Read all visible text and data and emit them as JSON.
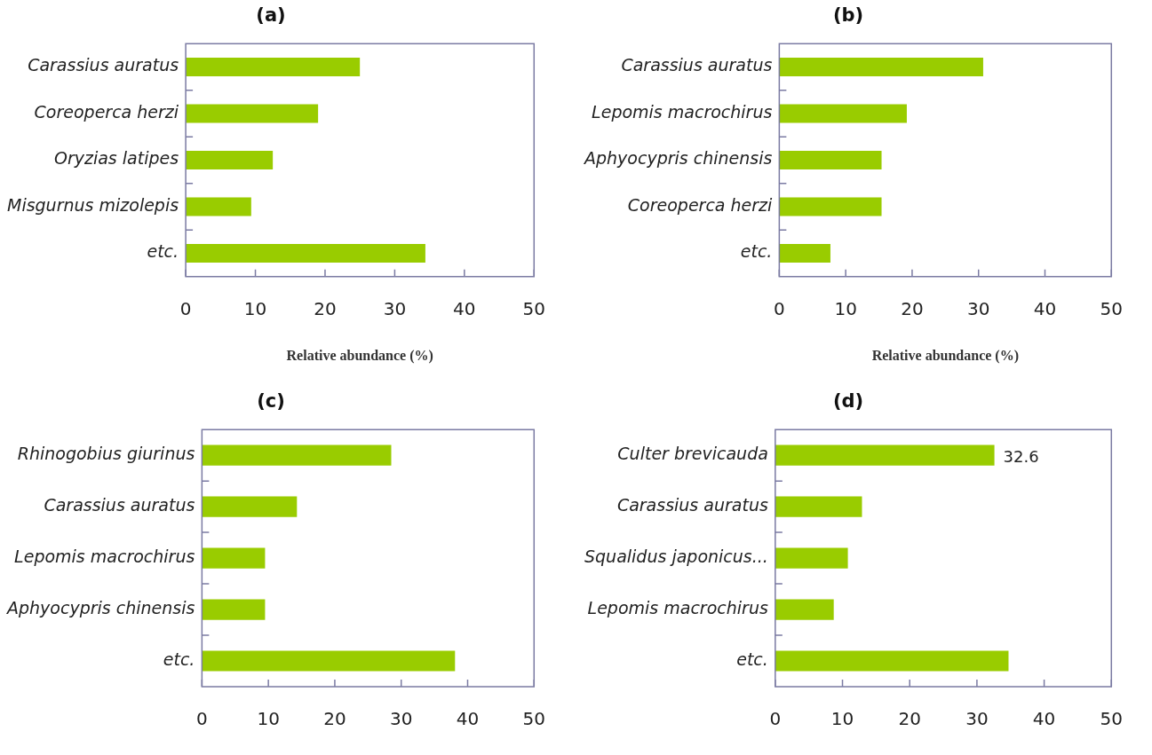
{
  "chart_data": [
    {
      "type": "bar",
      "orientation": "horizontal",
      "title": "(a)",
      "xlabel": "Relative abundance (%)",
      "categories": [
        "Carassius auratus",
        "Coreoperca herzi",
        "Oryzias latipes",
        "Misgurnus mizolepis",
        "etc."
      ],
      "values": [
        25,
        19,
        12.5,
        9.4,
        34.4
      ],
      "color": "#99cc00",
      "xlim": [
        0,
        50
      ],
      "xticks": [
        0,
        10,
        20,
        30,
        40,
        50
      ],
      "grid": false,
      "legend": false
    },
    {
      "type": "bar",
      "orientation": "horizontal",
      "title": "(b)",
      "xlabel": "Relative abundance (%)",
      "categories": [
        "Carassius auratus",
        "Lepomis macrochirus",
        "Aphyocypris chinensis",
        "Coreoperca herzi",
        "etc."
      ],
      "values": [
        30.7,
        19.2,
        15.4,
        15.4,
        7.7
      ],
      "color": "#99cc00",
      "xlim": [
        0,
        50
      ],
      "xticks": [
        0,
        10,
        20,
        30,
        40,
        50
      ],
      "grid": false,
      "legend": false
    },
    {
      "type": "bar",
      "orientation": "horizontal",
      "title": "(c)",
      "categories": [
        "Rhinogobius giurinus",
        "Carassius auratus",
        "Lepomis macrochirus",
        "Aphyocypris chinensis",
        "etc."
      ],
      "values": [
        28.5,
        14.3,
        9.5,
        9.5,
        38.1
      ],
      "color": "#99cc00",
      "xlim": [
        0,
        50
      ],
      "xticks": [
        0,
        10,
        20,
        30,
        40,
        50
      ],
      "grid": false,
      "legend": false
    },
    {
      "type": "bar",
      "orientation": "horizontal",
      "title": "(d)",
      "categories": [
        "Culter brevicauda",
        "Carassius auratus",
        "Squalidus japonicus...",
        "Lepomis macrochirus",
        "etc."
      ],
      "values": [
        32.6,
        12.9,
        10.8,
        8.7,
        34.7
      ],
      "value_labels": [
        "32.6",
        null,
        null,
        null,
        null
      ],
      "color": "#99cc00",
      "xlim": [
        0,
        50
      ],
      "xticks": [
        0,
        10,
        20,
        30,
        40,
        50
      ],
      "grid": false,
      "legend": false
    }
  ]
}
